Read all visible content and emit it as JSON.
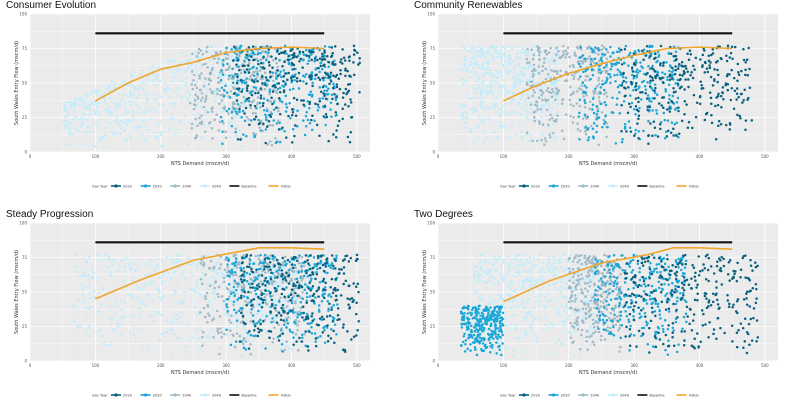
{
  "colors": {
    "y2020": "#08607f",
    "y2030": "#1aa7d8",
    "y2040": "#9fb9c6",
    "y2049": "#c4ecfb",
    "baseline": "#111111",
    "initial": "#f0a52c",
    "panel_bg": "#ebebeb",
    "grid": "#ffffff"
  },
  "chart_data": [
    {
      "type": "scatter",
      "title": "Consumer Evolution",
      "xlabel": "NTS Demand (mscm/d)",
      "ylabel": "South Wales Entry Flow (mscm/d)",
      "xlim": [
        0,
        520
      ],
      "ylim": [
        0,
        100
      ],
      "xticks": [
        "0",
        "100",
        "200",
        "300",
        "400",
        "500"
      ],
      "yticks": [
        "0",
        "25",
        "50",
        "75",
        "100"
      ],
      "legend_title": "Gas Year",
      "legend": [
        "2020",
        "2030",
        "2040",
        "2049",
        "Baseline",
        "Initial"
      ],
      "baseline": {
        "x": [
          100,
          450
        ],
        "y": [
          86,
          86
        ]
      },
      "initial": {
        "x": [
          100,
          150,
          200,
          250,
          300,
          350,
          400,
          450
        ],
        "y": [
          37,
          50,
          60,
          65,
          72,
          75,
          76,
          75
        ]
      },
      "clouds": [
        {
          "year": "2049",
          "xmin": 50,
          "xmax": 330,
          "curve": "consumer"
        },
        {
          "year": "2040",
          "xmin": 240,
          "xmax": 380,
          "curve": "consumer"
        },
        {
          "year": "2030",
          "xmin": 290,
          "xmax": 470,
          "curve": "consumer"
        },
        {
          "year": "2020",
          "xmin": 310,
          "xmax": 505,
          "curve": "consumer"
        }
      ]
    },
    {
      "type": "scatter",
      "title": "Community Renewables",
      "xlabel": "NTS Demand (mscm/d)",
      "ylabel": "South Wales Entry Flow (mscm/d)",
      "xlim": [
        0,
        520
      ],
      "ylim": [
        0,
        100
      ],
      "xticks": [
        "0",
        "100",
        "200",
        "300",
        "400",
        "500"
      ],
      "yticks": [
        "0",
        "25",
        "50",
        "75",
        "100"
      ],
      "legend_title": "Gas Year",
      "legend": [
        "2020",
        "2030",
        "2040",
        "2049",
        "Baseline",
        "Initial"
      ],
      "baseline": {
        "x": [
          100,
          450
        ],
        "y": [
          86,
          86
        ]
      },
      "initial": {
        "x": [
          100,
          150,
          200,
          250,
          300,
          350,
          400,
          450
        ],
        "y": [
          37,
          48,
          57,
          64,
          70,
          75,
          76,
          75
        ]
      },
      "clouds": [
        {
          "year": "2049",
          "xmin": 35,
          "xmax": 185,
          "curve": "flat"
        },
        {
          "year": "2040",
          "xmin": 135,
          "xmax": 260,
          "curve": "flat"
        },
        {
          "year": "2030",
          "xmin": 215,
          "xmax": 370,
          "curve": "flat"
        },
        {
          "year": "2020",
          "xmin": 280,
          "xmax": 480,
          "curve": "flat"
        }
      ]
    },
    {
      "type": "scatter",
      "title": "Steady Progression",
      "xlabel": "NTS Demand (mscm/d)",
      "ylabel": "South Wales Entry Flow (mscm/d)",
      "xlim": [
        0,
        520
      ],
      "ylim": [
        0,
        100
      ],
      "xticks": [
        "0",
        "100",
        "200",
        "300",
        "400",
        "500"
      ],
      "yticks": [
        "0",
        "25",
        "50",
        "75",
        "100"
      ],
      "legend_title": "Gas Year",
      "legend": [
        "2020",
        "2030",
        "2040",
        "2049",
        "Baseline",
        "Initial"
      ],
      "baseline": {
        "x": [
          100,
          450
        ],
        "y": [
          86,
          86
        ]
      },
      "initial": {
        "x": [
          100,
          170,
          250,
          350,
          400,
          450
        ],
        "y": [
          45,
          59,
          73,
          82,
          82,
          81
        ]
      },
      "clouds": [
        {
          "year": "2049",
          "xmin": 65,
          "xmax": 410,
          "curve": "flat"
        },
        {
          "year": "2040",
          "xmin": 260,
          "xmax": 420,
          "curve": "flat"
        },
        {
          "year": "2030",
          "xmin": 300,
          "xmax": 470,
          "curve": "flat"
        },
        {
          "year": "2020",
          "xmin": 320,
          "xmax": 505,
          "curve": "flat"
        }
      ]
    },
    {
      "type": "scatter",
      "title": "Two Degrees",
      "xlabel": "NTS Demand (mscm/d)",
      "ylabel": "South Wales Entry Flow (mscm/d)",
      "xlim": [
        0,
        520
      ],
      "ylim": [
        0,
        100
      ],
      "xticks": [
        "0",
        "100",
        "200",
        "300",
        "400",
        "500"
      ],
      "yticks": [
        "0",
        "25",
        "50",
        "75",
        "100"
      ],
      "legend_title": "Gas Year",
      "legend": [
        "2020",
        "2030",
        "2040",
        "2049",
        "Baseline",
        "Initial"
      ],
      "baseline": {
        "x": [
          100,
          450
        ],
        "y": [
          86,
          86
        ]
      },
      "initial": {
        "x": [
          100,
          170,
          250,
          320,
          360,
          400,
          450
        ],
        "y": [
          43,
          58,
          71,
          77,
          82,
          82,
          81
        ]
      },
      "clouds": [
        {
          "year": "2049",
          "xmin": 55,
          "xmax": 240,
          "curve": "flat"
        },
        {
          "year": "2030",
          "xmin": 35,
          "xmax": 100,
          "curve": "low"
        },
        {
          "year": "2040",
          "xmin": 200,
          "xmax": 280,
          "curve": "flat"
        },
        {
          "year": "2030",
          "xmin": 240,
          "xmax": 380,
          "curve": "flat"
        },
        {
          "year": "2020",
          "xmin": 285,
          "xmax": 490,
          "curve": "flat"
        }
      ]
    }
  ]
}
